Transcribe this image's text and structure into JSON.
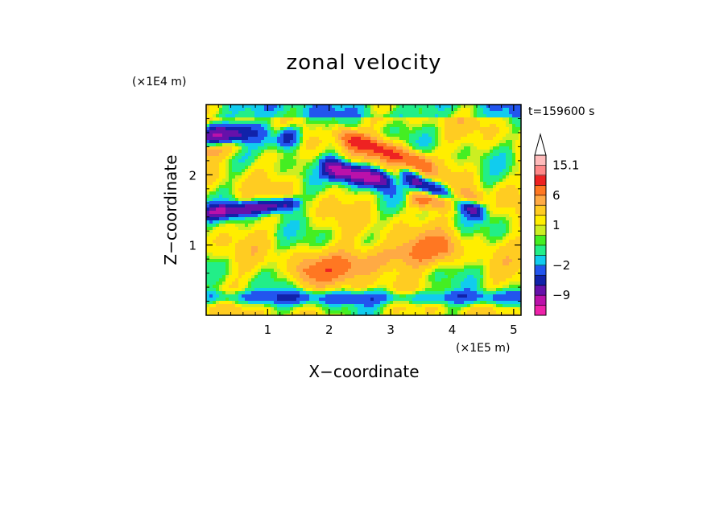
{
  "chart_data": {
    "type": "heatmap",
    "title": "zonal velocity",
    "xlabel": "X−coordinate",
    "ylabel": "Z−coordinate",
    "x_unit": "(×1E5 m)",
    "y_unit": "(×1E4 m)",
    "time_label": "t=159600 s",
    "xlim": [
      0.0,
      5.12
    ],
    "ylim": [
      0.0,
      3.0
    ],
    "x_ticks": [
      1,
      2,
      3,
      4,
      5
    ],
    "x_tick_labels": [
      "1",
      "2",
      "3",
      "4",
      "5"
    ],
    "y_ticks": [
      1,
      2
    ],
    "y_tick_labels": [
      "1",
      "2"
    ],
    "colorbar": {
      "levels": [
        -15,
        -12,
        -9,
        -6,
        -4,
        -2,
        -1,
        0,
        0.5,
        1,
        2,
        4,
        6,
        9,
        12,
        15.1
      ],
      "tick_labels": [
        {
          "value": 15.1,
          "label": "15.1"
        },
        {
          "value": 6,
          "label": "6"
        },
        {
          "value": 1,
          "label": "1"
        },
        {
          "value": -2,
          "label": "−2"
        },
        {
          "value": -9,
          "label": "−9"
        }
      ],
      "colors": [
        "#ee22aa",
        "#bb11aa",
        "#6611aa",
        "#1122aa",
        "#2255ee",
        "#11ccee",
        "#22ee88",
        "#44ee22",
        "#ccee22",
        "#ffee00",
        "#ffcc22",
        "#ffaa44",
        "#ff7722",
        "#ee2222",
        "#ff8888",
        "#ffbbbb"
      ],
      "extend": "max"
    }
  }
}
